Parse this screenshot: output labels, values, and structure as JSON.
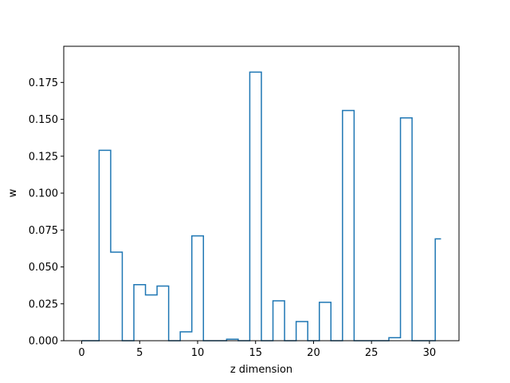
{
  "chart_data": {
    "type": "line",
    "drawstyle": "steps-mid",
    "title": "",
    "xlabel": "z dimension",
    "ylabel": "w",
    "xlim": [
      -1.55,
      32.55
    ],
    "ylim": [
      0,
      0.1995
    ],
    "xticks": [
      0,
      5,
      10,
      15,
      20,
      25,
      30
    ],
    "xtick_labels": [
      "0",
      "5",
      "10",
      "15",
      "20",
      "25",
      "30"
    ],
    "yticks": [
      0.0,
      0.025,
      0.05,
      0.075,
      0.1,
      0.125,
      0.15,
      0.175
    ],
    "ytick_labels": [
      "0.000",
      "0.025",
      "0.050",
      "0.075",
      "0.100",
      "0.125",
      "0.150",
      "0.175"
    ],
    "grid": false,
    "legend": "none",
    "color": "#1f77b4",
    "series": [
      {
        "x": [
          0,
          1,
          2,
          3,
          4,
          5,
          6,
          7,
          8,
          9,
          10,
          11,
          12,
          13,
          14,
          15,
          16,
          17,
          18,
          19,
          20,
          21,
          22,
          23,
          24,
          25,
          26,
          27,
          28,
          29,
          30,
          31
        ],
        "values": [
          0.0,
          0.0,
          0.129,
          0.06,
          0.0,
          0.038,
          0.031,
          0.037,
          0.0,
          0.006,
          0.071,
          0.0,
          0.0,
          0.001,
          0.0,
          0.182,
          0.0,
          0.027,
          0.0,
          0.013,
          0.0,
          0.026,
          0.0,
          0.156,
          0.0,
          0.0,
          0.0,
          0.002,
          0.151,
          0.0,
          0.0,
          0.069
        ]
      }
    ]
  }
}
